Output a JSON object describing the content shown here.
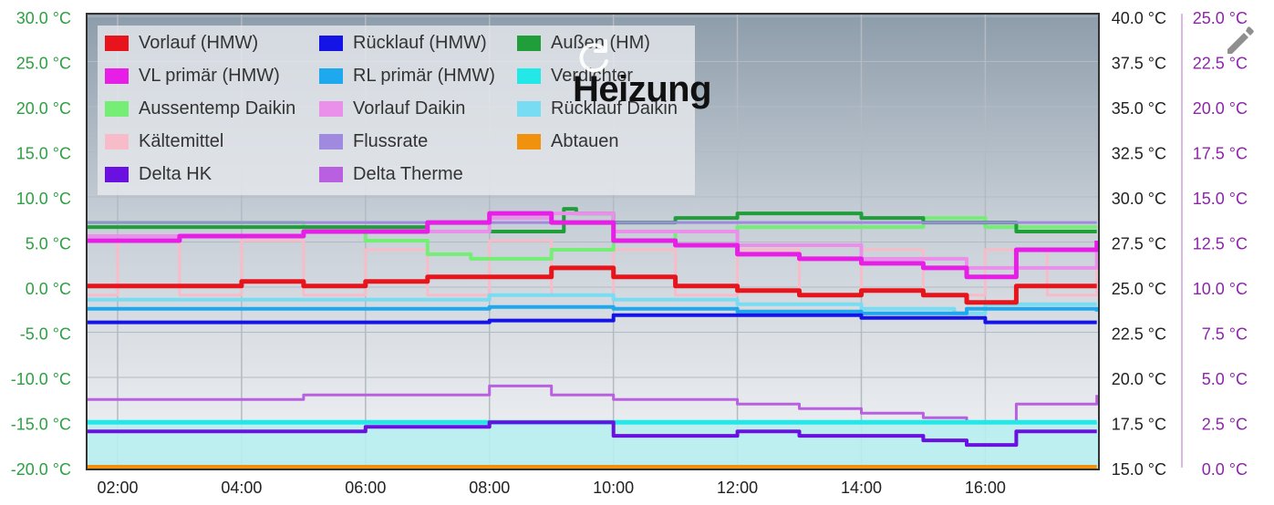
{
  "title": "Heizung",
  "icons": {
    "reload": "reload-icon",
    "edit": "pencil-edit-icon"
  },
  "chart_data": {
    "type": "line",
    "title": "Heizung",
    "x_ticks": [
      "02:00",
      "04:00",
      "06:00",
      "08:00",
      "10:00",
      "12:00",
      "14:00",
      "16:00"
    ],
    "x_range": [
      "01:30",
      "17:50"
    ],
    "axes": {
      "left": {
        "ticks": [
          "30.0 °C",
          "25.0 °C",
          "20.0 °C",
          "15.0 °C",
          "10.0 °C",
          "5.0 °C",
          "0.0 °C",
          "-5.0 °C",
          "-10.0 °C",
          "-15.0 °C",
          "-20.0 °C"
        ],
        "range": [
          -20,
          30
        ],
        "color": "#2ea043"
      },
      "right1": {
        "ticks": [
          "40.0 °C",
          "37.5 °C",
          "35.0 °C",
          "32.5 °C",
          "30.0 °C",
          "27.5 °C",
          "25.0 °C",
          "22.5 °C",
          "20.0 °C",
          "17.5 °C",
          "15.0 °C"
        ],
        "range": [
          15,
          40
        ],
        "color": "#222222"
      },
      "right2": {
        "ticks": [
          "25.0 °C",
          "22.5 °C",
          "20.0 °C",
          "17.5 °C",
          "15.0 °C",
          "12.5 °C",
          "10.0 °C",
          "7.5 °C",
          "5.0 °C",
          "2.5 °C",
          "0.0 °C"
        ],
        "range": [
          0,
          25
        ],
        "color": "#8e24aa"
      }
    },
    "grid": true,
    "legend_position": "top-left",
    "legend": [
      {
        "name": "Vorlauf (HMW)",
        "color": "#e8141b"
      },
      {
        "name": "Rücklauf (HMW)",
        "color": "#1414e6"
      },
      {
        "name": "Außen (HM)",
        "color": "#1f9e3a"
      },
      {
        "name": "VL primär (HMW)",
        "color": "#e61ee6"
      },
      {
        "name": "RL primär (HMW)",
        "color": "#1ea8ee"
      },
      {
        "name": "Verdichter",
        "color": "#22e8e8"
      },
      {
        "name": "Aussentemp Daikin",
        "color": "#74ee74"
      },
      {
        "name": "Vorlauf Daikin",
        "color": "#ea90ea"
      },
      {
        "name": "Rücklauf Daikin",
        "color": "#78dcf2"
      },
      {
        "name": "Kältemittel",
        "color": "#f8bcc8"
      },
      {
        "name": "Flussrate",
        "color": "#a08ae0"
      },
      {
        "name": "Abtauen",
        "color": "#f0920e"
      },
      {
        "name": "Delta HK",
        "color": "#6a10e0"
      },
      {
        "name": "Delta Therme",
        "color": "#b860e0"
      }
    ],
    "series": [
      {
        "name": "Vorlauf (HMW)",
        "axis": "left",
        "color": "#e8141b",
        "x": [
          1.5,
          3,
          4,
          5,
          6,
          7,
          8,
          9,
          10,
          11,
          12,
          13,
          14,
          15,
          15.7,
          16.5,
          17.8
        ],
        "y": [
          0,
          0,
          0.5,
          0,
          0.5,
          1,
          1,
          2,
          1,
          0,
          -0.5,
          -1,
          -0.5,
          -1,
          -1.8,
          0,
          0
        ]
      },
      {
        "name": "Rücklauf (HMW)",
        "axis": "left",
        "color": "#1414e6",
        "x": [
          1.5,
          4,
          6,
          8,
          10,
          12,
          14,
          16,
          17.8
        ],
        "y": [
          -4,
          -4,
          -4,
          -3.8,
          -3.2,
          -3.2,
          -3.5,
          -4,
          -4
        ]
      },
      {
        "name": "Außen (HM)",
        "axis": "left",
        "color": "#1f9e3a",
        "x": [
          1.5,
          5,
          7,
          8,
          9.2,
          9.4,
          10,
          11,
          12,
          13,
          14,
          15,
          15.7,
          16.5,
          17.8
        ],
        "y": [
          6.5,
          6.5,
          6,
          6,
          8.5,
          8,
          7,
          7.5,
          8,
          8,
          7.5,
          7,
          7,
          6,
          6
        ]
      },
      {
        "name": "VL primär (HMW)",
        "axis": "left",
        "color": "#e61ee6",
        "x": [
          1.5,
          3,
          5,
          7,
          8,
          9,
          10,
          11,
          12,
          13,
          14,
          15,
          15.7,
          16.5,
          17.8
        ],
        "y": [
          5,
          5.5,
          6,
          7,
          8,
          7,
          5,
          4.5,
          3.5,
          3,
          2.5,
          2,
          1,
          4,
          5
        ]
      },
      {
        "name": "RL primär (HMW)",
        "axis": "left",
        "color": "#1ea8ee",
        "x": [
          1.5,
          4,
          8,
          10,
          12,
          14,
          15.7,
          16,
          17.8
        ],
        "y": [
          -2.5,
          -2.5,
          -2.3,
          -2.5,
          -2.8,
          -3,
          -2.5,
          -2.5,
          -2.8
        ]
      },
      {
        "name": "Verdichter",
        "axis": "left",
        "color": "#22e8e8",
        "x": [
          1.5,
          17.8
        ],
        "y": [
          -15,
          -15
        ]
      },
      {
        "name": "Aussentemp Daikin",
        "axis": "left",
        "color": "#74ee74",
        "x": [
          1.5,
          5,
          6,
          7,
          7.7,
          8,
          9,
          10,
          11,
          12,
          13,
          14,
          15,
          15.5,
          16,
          17.8
        ],
        "y": [
          7,
          6.5,
          5,
          3.5,
          3,
          3,
          4,
          5,
          6,
          6.5,
          6.5,
          6.5,
          7.5,
          7.5,
          6.5,
          6.5
        ]
      },
      {
        "name": "Vorlauf Daikin",
        "axis": "left",
        "color": "#ea90ea",
        "x": [
          1.5,
          5,
          8,
          9,
          10,
          12,
          14,
          15.7,
          17.8
        ],
        "y": [
          5.5,
          6,
          7.5,
          8,
          6,
          4.5,
          3,
          2,
          5
        ]
      },
      {
        "name": "Rücklauf Daikin",
        "axis": "left",
        "color": "#78dcf2",
        "x": [
          1.5,
          5,
          8,
          10,
          12,
          14,
          15.5,
          16,
          17.8
        ],
        "y": [
          -1.5,
          -1.5,
          -1,
          -1.5,
          -2,
          -2.5,
          -3,
          -2,
          -2
        ]
      },
      {
        "name": "Kältemittel",
        "axis": "left",
        "color": "#f8bcc8",
        "x": [
          1.5,
          2,
          3,
          4,
          5,
          6,
          7,
          8,
          9,
          10,
          11,
          12,
          13,
          14,
          15,
          16,
          17,
          17.8
        ],
        "y": [
          -1,
          5,
          -1,
          5,
          -1,
          4,
          -1,
          5,
          -1,
          4,
          -1,
          4,
          -1,
          4,
          -1,
          4,
          -1,
          4
        ]
      },
      {
        "name": "Flussrate",
        "axis": "left",
        "color": "#a08ae0",
        "x": [
          1.5,
          17.8
        ],
        "y": [
          7,
          7
        ]
      },
      {
        "name": "Abtauen",
        "axis": "left",
        "color": "#f0920e",
        "x": [
          1.5,
          17.8
        ],
        "y": [
          -20,
          -20
        ]
      },
      {
        "name": "Delta HK",
        "axis": "left",
        "color": "#6a10e0",
        "x": [
          1.5,
          4,
          6,
          8,
          9.5,
          10,
          11,
          12,
          13,
          14,
          15,
          15.7,
          16.5,
          17.8
        ],
        "y": [
          -16,
          -16,
          -15.5,
          -15,
          -15,
          -16.5,
          -16.5,
          -16,
          -16.5,
          -16.5,
          -17,
          -17.5,
          -16,
          -16
        ]
      },
      {
        "name": "Delta Therme",
        "axis": "left",
        "color": "#b860e0",
        "x": [
          1.5,
          3,
          5,
          6,
          7,
          8,
          9,
          10,
          11,
          12,
          13,
          14,
          15,
          15.7,
          16.5,
          17.8
        ],
        "y": [
          -12.5,
          -12.5,
          -12,
          -12,
          -12,
          -11,
          -12,
          -12.5,
          -12.5,
          -13,
          -13.5,
          -14,
          -14.5,
          -15,
          -13,
          -12
        ]
      }
    ]
  }
}
